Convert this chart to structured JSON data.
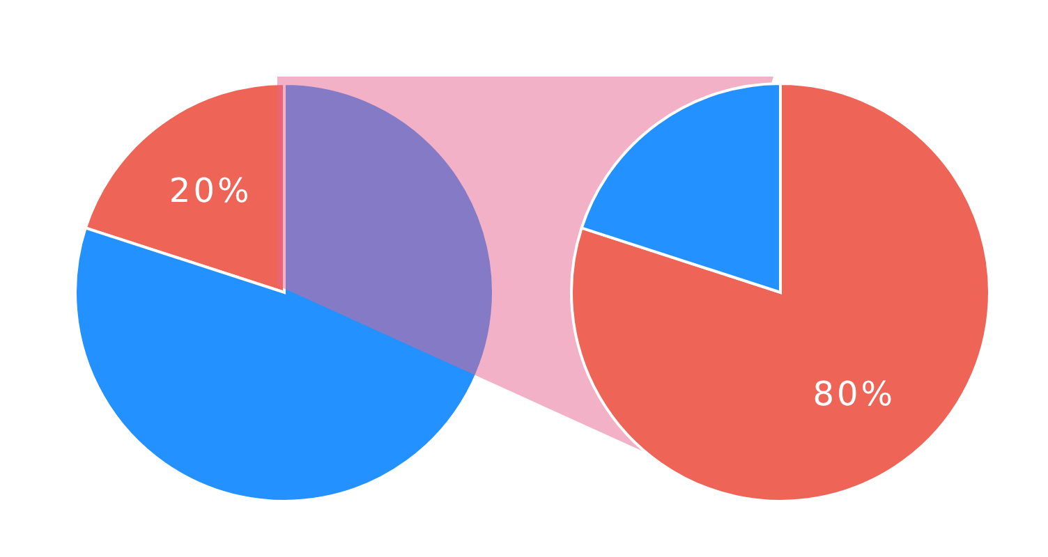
{
  "chart_data": [
    {
      "type": "pie",
      "categories": [
        null,
        null
      ],
      "values": [
        20,
        80
      ],
      "colors": [
        "#ee6557",
        "#2391ff"
      ],
      "value_labels": [
        "20%",
        null
      ],
      "legend": false
    },
    {
      "type": "pie",
      "categories": [
        null,
        null
      ],
      "values": [
        80,
        20
      ],
      "colors": [
        "#ee6557",
        "#2391ff"
      ],
      "value_labels": [
        "80%",
        null
      ],
      "legend": false
    }
  ]
}
